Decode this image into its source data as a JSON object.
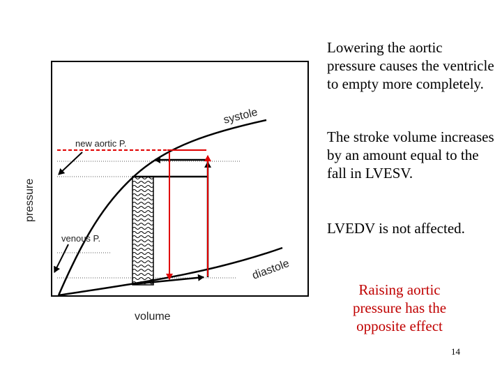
{
  "diagram": {
    "y_axis_label": "pressure",
    "x_axis_label": "volume",
    "curve_systole_label": "systole",
    "curve_diastole_label": "diastole",
    "label_new_aortic": "new aortic P.",
    "label_venous": "venous P."
  },
  "annotations": {
    "p1": "Lowering the aortic pressure causes the ventricle to empty more completely.",
    "p2": "The stroke volume increases by an amount equal to the fall in LVESV.",
    "p3": "LVEDV is not affected.",
    "p4": "Raising aortic pressure has the opposite effect"
  },
  "colors": {
    "highlight": "#e00000",
    "emphasis_text": "#c00000",
    "line": "#000000"
  },
  "page_number": "14"
}
